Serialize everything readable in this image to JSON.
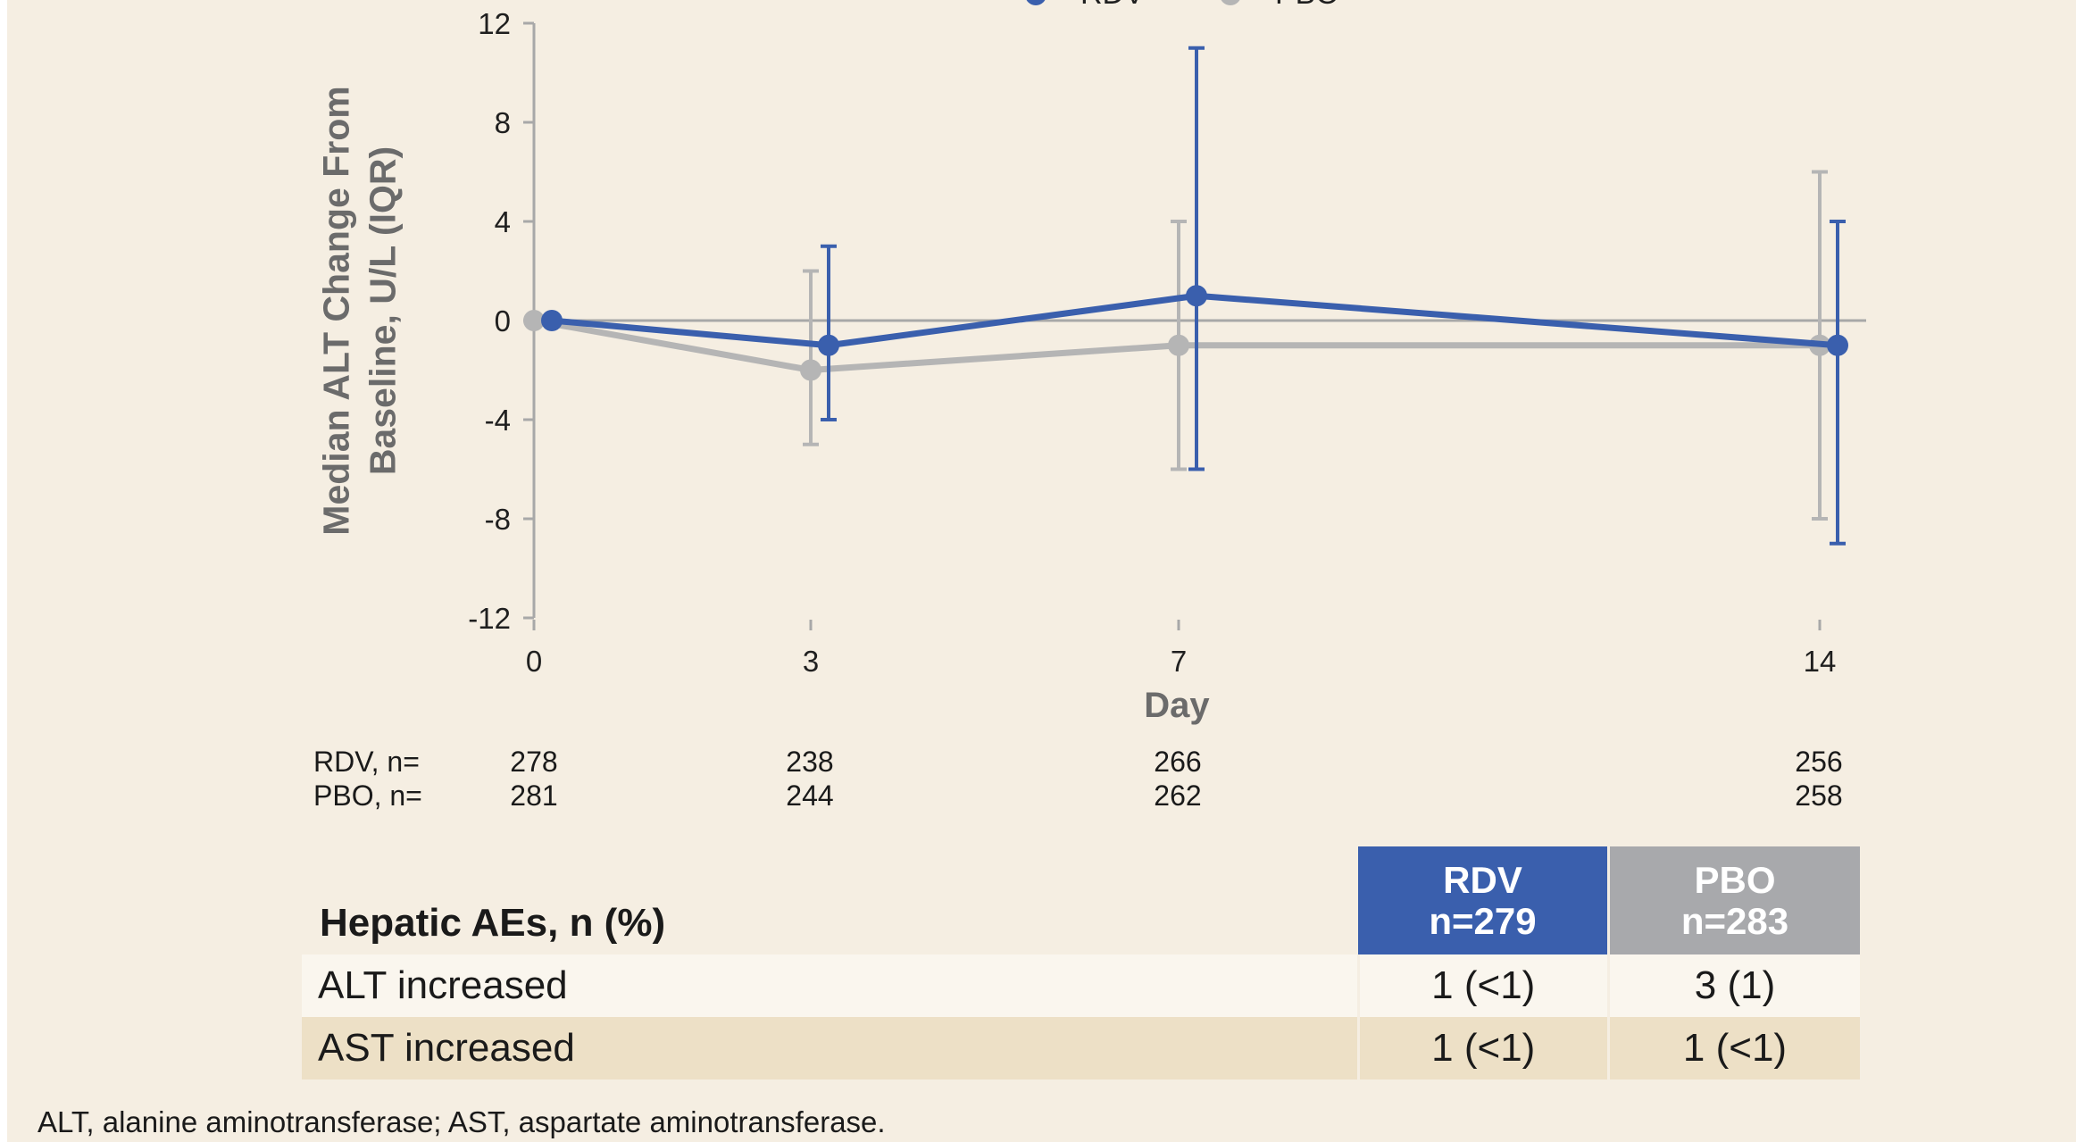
{
  "chart_data": {
    "type": "line",
    "title": "",
    "xlabel": "Day",
    "ylabel_lines": [
      "Median ALT Change From",
      "Baseline, U/L (IQR)"
    ],
    "x": [
      0,
      3,
      7,
      14
    ],
    "x_tick_labels": [
      "0",
      "3",
      "7",
      "14"
    ],
    "ylim": [
      -12,
      12
    ],
    "y_ticks": [
      12,
      8,
      4,
      0,
      -4,
      -8,
      -12
    ],
    "y_tick_labels": [
      "12",
      "8",
      "4",
      "0",
      "-4",
      "-8",
      "-12"
    ],
    "legend_position": "top",
    "series": [
      {
        "name": "PBO",
        "color": "#b5b5b5",
        "median": [
          0,
          -2,
          -1,
          -1
        ],
        "q1": [
          0,
          -5,
          -6,
          -8
        ],
        "q3": [
          0,
          2,
          4,
          6
        ]
      },
      {
        "name": "RDV",
        "color": "#3a5fad",
        "median": [
          0,
          -1,
          1,
          -1
        ],
        "q1": [
          0,
          -4,
          -6,
          -9
        ],
        "q3": [
          0,
          3,
          11,
          4
        ]
      }
    ],
    "at_risk": {
      "rows": [
        {
          "label": "RDV, n=",
          "values": [
            "278",
            "238",
            "266",
            "256"
          ]
        },
        {
          "label": "PBO, n=",
          "values": [
            "281",
            "244",
            "262",
            "258"
          ]
        }
      ]
    }
  },
  "table": {
    "title": "Hepatic AEs, n (%)",
    "columns": [
      {
        "line1": "RDV",
        "line2": "n=279"
      },
      {
        "line1": "PBO",
        "line2": "n=283"
      }
    ],
    "rows": [
      {
        "label": "ALT increased",
        "values": [
          "1 (<1)",
          "3 (1)"
        ]
      },
      {
        "label": "AST increased",
        "values": [
          "1 (<1)",
          "1 (<1)"
        ]
      }
    ]
  },
  "footnote": "ALT, alanine aminotransferase; AST, aspartate aminotransferase."
}
